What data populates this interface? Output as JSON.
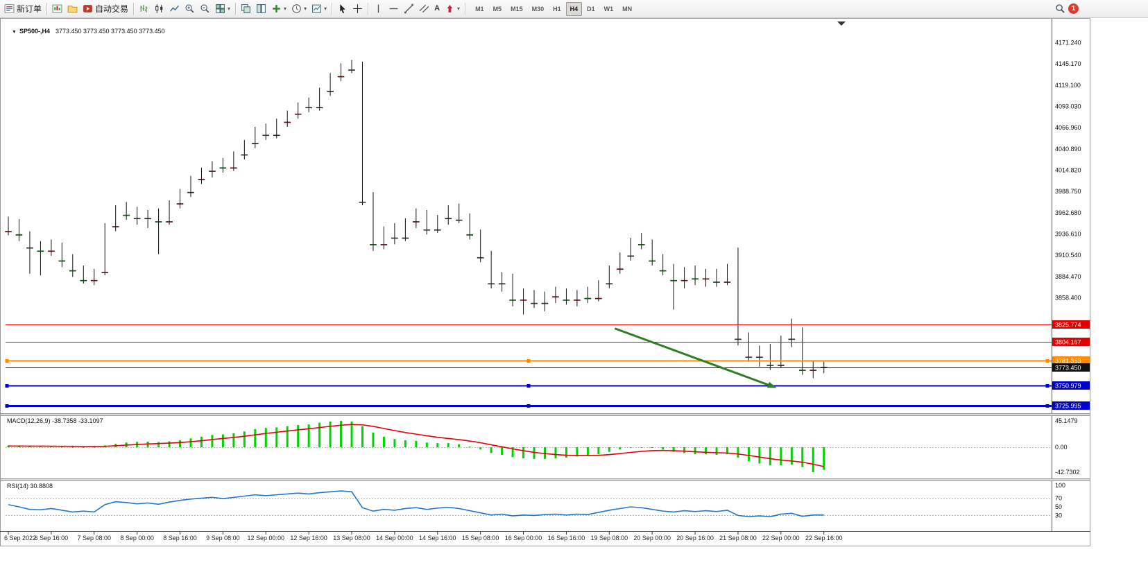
{
  "toolbar": {
    "new_order": "新订单",
    "auto_trading": "自动交易",
    "text_tool": "A",
    "timeframes": [
      "M1",
      "M5",
      "M15",
      "M30",
      "H1",
      "H4",
      "D1",
      "W1",
      "MN"
    ],
    "active_timeframe": "H4",
    "badge_count": "1"
  },
  "chart": {
    "symbol_title": "SP500-,H4",
    "ohlc_text": "3773.450 3773.450 3773.450 3773.450"
  },
  "chart_data": {
    "type": "candlestick",
    "symbol": "SP500-",
    "timeframe": "H4",
    "colors": {
      "up": "#e01010",
      "down": "#00c010",
      "wick": "#111111",
      "macd_hist": "#00d400",
      "macd_signal": "#e80000",
      "rsi_line": "#2277cc",
      "level_red": "#e00000",
      "level_orange": "#ff8a00",
      "level_blue": "#0000cc",
      "price_line": "#111111",
      "arrow": "#2f7d26"
    },
    "price_axis": {
      "labels": [
        "4171.240",
        "4145.170",
        "4119.100",
        "4093.030",
        "4066.960",
        "4040.890",
        "4014.820",
        "3988.750",
        "3962.680",
        "3936.610",
        "3910.540",
        "3884.470",
        "3858.400"
      ],
      "top": 4185.3,
      "bottom": 3717.8
    },
    "levels": [
      {
        "price": 3825.774,
        "label": "3825.774",
        "color": "red",
        "width": 1,
        "handles": false
      },
      {
        "price": 3804.167,
        "label": "3804.167",
        "color": "red",
        "width": 1,
        "handles": false
      },
      {
        "price": 3781.353,
        "label": "3781.353",
        "color": "orange",
        "width": 2,
        "handles": true
      },
      {
        "price": 3750.979,
        "label": "3750.979",
        "color": "blue",
        "width": 2,
        "handles": true
      },
      {
        "price": 3725.995,
        "label": "3725.995",
        "color": "blue",
        "width": 3,
        "handles": true
      }
    ],
    "current_price": {
      "value": 3773.45,
      "label": "3773.450"
    },
    "arrow": {
      "bar1": 56.6,
      "price1": 3820.5,
      "bar2": 71.6,
      "price2": 3748.0
    },
    "candles": [
      [
        3940,
        3958,
        3935,
        3952
      ],
      [
        3952,
        3955,
        3928,
        3936
      ],
      [
        3936,
        3940,
        3888,
        3920
      ],
      [
        3920,
        3928,
        3886,
        3916
      ],
      [
        3916,
        3930,
        3910,
        3924
      ],
      [
        3924,
        3926,
        3896,
        3904
      ],
      [
        3904,
        3912,
        3884,
        3892
      ],
      [
        3892,
        3898,
        3876,
        3880
      ],
      [
        3880,
        3894,
        3874,
        3890
      ],
      [
        3890,
        3950,
        3886,
        3946
      ],
      [
        3946,
        3972,
        3940,
        3966
      ],
      [
        3966,
        3976,
        3954,
        3960
      ],
      [
        3960,
        3970,
        3948,
        3956
      ],
      [
        3956,
        3966,
        3944,
        3962
      ],
      [
        3962,
        3968,
        3912,
        3952
      ],
      [
        3952,
        3978,
        3948,
        3974
      ],
      [
        3974,
        3992,
        3968,
        3988
      ],
      [
        3988,
        4008,
        3982,
        4004
      ],
      [
        4004,
        4018,
        3998,
        4014
      ],
      [
        4014,
        4026,
        4006,
        4022
      ],
      [
        4022,
        4030,
        4012,
        4018
      ],
      [
        4018,
        4038,
        4014,
        4034
      ],
      [
        4034,
        4052,
        4028,
        4048
      ],
      [
        4048,
        4068,
        4042,
        4064
      ],
      [
        4064,
        4072,
        4052,
        4058
      ],
      [
        4058,
        4078,
        4054,
        4074
      ],
      [
        4074,
        4088,
        4068,
        4084
      ],
      [
        4084,
        4098,
        4078,
        4094
      ],
      [
        4094,
        4104,
        4086,
        4092
      ],
      [
        4092,
        4116,
        4088,
        4112
      ],
      [
        4112,
        4134,
        4106,
        4130
      ],
      [
        4130,
        4146,
        4124,
        4142
      ],
      [
        4142,
        4150,
        4134,
        4138
      ],
      [
        4138,
        4148,
        3972,
        3976
      ],
      [
        3976,
        3988,
        3916,
        3924
      ],
      [
        3924,
        3946,
        3918,
        3940
      ],
      [
        3940,
        3950,
        3924,
        3932
      ],
      [
        3932,
        3956,
        3928,
        3952
      ],
      [
        3952,
        3968,
        3944,
        3962
      ],
      [
        3962,
        3966,
        3936,
        3942
      ],
      [
        3942,
        3960,
        3938,
        3956
      ],
      [
        3956,
        3972,
        3948,
        3968
      ],
      [
        3968,
        3974,
        3950,
        3954
      ],
      [
        3954,
        3962,
        3930,
        3936
      ],
      [
        3936,
        3942,
        3902,
        3908
      ],
      [
        3908,
        3916,
        3870,
        3876
      ],
      [
        3876,
        3890,
        3866,
        3884
      ],
      [
        3884,
        3888,
        3848,
        3856
      ],
      [
        3856,
        3870,
        3838,
        3862
      ],
      [
        3862,
        3868,
        3846,
        3852
      ],
      [
        3852,
        3866,
        3842,
        3860
      ],
      [
        3860,
        3872,
        3852,
        3866
      ],
      [
        3866,
        3870,
        3850,
        3856
      ],
      [
        3856,
        3868,
        3848,
        3864
      ],
      [
        3864,
        3872,
        3852,
        3858
      ],
      [
        3858,
        3880,
        3854,
        3876
      ],
      [
        3876,
        3898,
        3870,
        3894
      ],
      [
        3894,
        3914,
        3888,
        3910
      ],
      [
        3910,
        3932,
        3904,
        3928
      ],
      [
        3928,
        3938,
        3918,
        3924
      ],
      [
        3924,
        3930,
        3898,
        3904
      ],
      [
        3904,
        3912,
        3886,
        3892
      ],
      [
        3892,
        3900,
        3844,
        3880
      ],
      [
        3880,
        3896,
        3870,
        3890
      ],
      [
        3890,
        3898,
        3874,
        3882
      ],
      [
        3882,
        3894,
        3872,
        3888
      ],
      [
        3888,
        3894,
        3872,
        3878
      ],
      [
        3878,
        3900,
        3874,
        3896
      ],
      [
        3896,
        3920,
        3800,
        3808
      ],
      [
        3808,
        3816,
        3780,
        3786
      ],
      [
        3786,
        3800,
        3774,
        3796
      ],
      [
        3796,
        3802,
        3770,
        3776
      ],
      [
        3776,
        3812,
        3772,
        3808
      ],
      [
        3808,
        3833,
        3798,
        3818
      ],
      [
        3818,
        3822,
        3764,
        3770
      ],
      [
        3770,
        3782,
        3760,
        3776
      ],
      [
        3776,
        3780,
        3766,
        3773.45
      ]
    ],
    "time_axis": [
      {
        "bar": 0,
        "text": "6 Sep 2022"
      },
      {
        "bar": 4,
        "text": "6 Sep 16:00"
      },
      {
        "bar": 8,
        "text": "7 Sep 08:00"
      },
      {
        "bar": 12,
        "text": "8 Sep 00:00"
      },
      {
        "bar": 16,
        "text": "8 Sep 16:00"
      },
      {
        "bar": 20,
        "text": "9 Sep 08:00"
      },
      {
        "bar": 24,
        "text": "12 Sep 00:00"
      },
      {
        "bar": 28,
        "text": "12 Sep 16:00"
      },
      {
        "bar": 32,
        "text": "13 Sep 08:00"
      },
      {
        "bar": 36,
        "text": "14 Sep 00:00"
      },
      {
        "bar": 40,
        "text": "14 Sep 16:00"
      },
      {
        "bar": 44,
        "text": "15 Sep 08:00"
      },
      {
        "bar": 48,
        "text": "16 Sep 00:00"
      },
      {
        "bar": 52,
        "text": "16 Sep 16:00"
      },
      {
        "bar": 56,
        "text": "19 Sep 08:00"
      },
      {
        "bar": 60,
        "text": "20 Sep 00:00"
      },
      {
        "bar": 64,
        "text": "20 Sep 16:00"
      },
      {
        "bar": 68,
        "text": "21 Sep 08:00"
      },
      {
        "bar": 72,
        "text": "22 Sep 00:00"
      },
      {
        "bar": 76,
        "text": "22 Sep 16:00"
      }
    ],
    "macd": {
      "label": "MACD(12,26,9) -38.7358 -33.1097",
      "axis_labels": [
        "45.1479",
        "0.00",
        "-42.7302"
      ],
      "hist": [
        3,
        2.5,
        1.5,
        1,
        1.5,
        1,
        0.5,
        0,
        0.5,
        3,
        6,
        8,
        9,
        9.5,
        9,
        10,
        12,
        15,
        18,
        21,
        22,
        24,
        27,
        31,
        33,
        34,
        36,
        38,
        39,
        42,
        44,
        45.15,
        44,
        36,
        25,
        18,
        14,
        12,
        11,
        8,
        7,
        7,
        5,
        1,
        -4,
        -10,
        -13,
        -17,
        -19,
        -20,
        -20,
        -19,
        -18,
        -16,
        -15,
        -12,
        -8,
        -4,
        -1,
        0,
        -1,
        -4,
        -8,
        -10,
        -12,
        -12,
        -13,
        -12,
        -18,
        -24,
        -28,
        -31,
        -31,
        -30,
        -34,
        -42.73,
        -38.74
      ],
      "signal": [
        2,
        2,
        1.9,
        1.8,
        1.7,
        1.6,
        1.5,
        1.4,
        1.3,
        1.6,
        2.5,
        3.6,
        4.7,
        5.6,
        6.3,
        7,
        8,
        9.4,
        11.1,
        13.1,
        14.9,
        16.7,
        18.8,
        21.2,
        23.6,
        25.7,
        27.7,
        29.8,
        31.6,
        33.7,
        35.8,
        37.6,
        38.9,
        38.3,
        35.7,
        32.1,
        28.5,
        25.2,
        22.4,
        19.5,
        17,
        14.9,
        13,
        10.6,
        7.7,
        4.1,
        0.7,
        -2.8,
        -6,
        -8.8,
        -11,
        -12.6,
        -13.7,
        -14.2,
        -14.3,
        -13.9,
        -12.7,
        -10.9,
        -8.9,
        -7.2,
        -5.9,
        -5.5,
        -6,
        -6.8,
        -7.8,
        -8.7,
        -9.5,
        -10,
        -11.6,
        -14.1,
        -16.9,
        -19.7,
        -22,
        -23.6,
        -25.7,
        -29.1,
        -33.11
      ]
    },
    "rsi": {
      "label": "RSI(14) 30.8808",
      "axis_labels": [
        "100",
        "70",
        "50",
        "30"
      ],
      "levels": [
        70,
        30
      ],
      "values": [
        55,
        50,
        44,
        43,
        46,
        42,
        38,
        40,
        38,
        55,
        62,
        60,
        57,
        59,
        56,
        61,
        65,
        68,
        70,
        72,
        69,
        72,
        75,
        78,
        76,
        78,
        80,
        82,
        80,
        83,
        85,
        87,
        85,
        48,
        40,
        44,
        42,
        46,
        48,
        44,
        47,
        49,
        46,
        41,
        36,
        31,
        33,
        29,
        31,
        30,
        32,
        33,
        31,
        33,
        32,
        37,
        42,
        46,
        50,
        48,
        44,
        40,
        38,
        41,
        39,
        41,
        39,
        42,
        30,
        27,
        29,
        27,
        33,
        35,
        28,
        31,
        30.88
      ]
    }
  }
}
